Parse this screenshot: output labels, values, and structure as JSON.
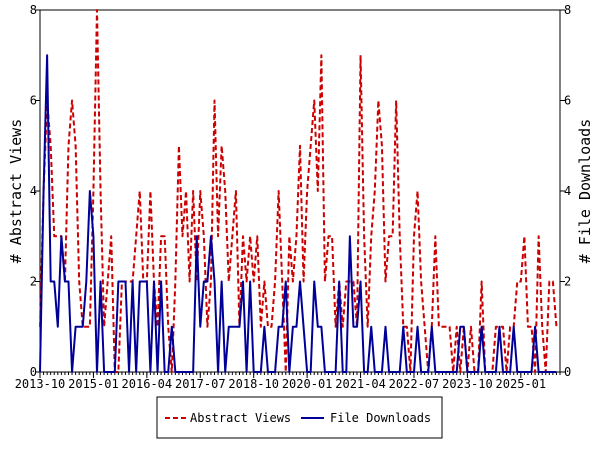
{
  "chart_data": {
    "type": "line",
    "ylabel_left": "# Abstract Views",
    "ylabel_right": "# File Downloads",
    "xlim": [
      "2013-10",
      "2025-12"
    ],
    "ylim_left": [
      0,
      8
    ],
    "ylim_right": [
      0,
      8
    ],
    "y_ticks": [
      0,
      2,
      4,
      6,
      8
    ],
    "x_tick_labels": [
      "2013-10",
      "2015-01",
      "2016-04",
      "2017-07",
      "2018-10",
      "2020-01",
      "2021-04",
      "2022-07",
      "2023-10",
      "2025-01"
    ],
    "grid": false,
    "legend_position": "bottom",
    "series": [
      {
        "name": "Abstract Views",
        "color": "#cc0000",
        "style": "dashed",
        "axis": "left",
        "points": [
          [
            "2013-10",
            1
          ],
          [
            "2013-11",
            4
          ],
          [
            "2013-12",
            6
          ],
          [
            "2014-01",
            5
          ],
          [
            "2014-02",
            3
          ],
          [
            "2014-03",
            3
          ],
          [
            "2014-04",
            3
          ],
          [
            "2014-05",
            2
          ],
          [
            "2014-06",
            5
          ],
          [
            "2014-07",
            6
          ],
          [
            "2014-08",
            5
          ],
          [
            "2014-09",
            2
          ],
          [
            "2014-10",
            1
          ],
          [
            "2014-11",
            1
          ],
          [
            "2014-12",
            1
          ],
          [
            "2015-01",
            4
          ],
          [
            "2015-02",
            8
          ],
          [
            "2015-03",
            4
          ],
          [
            "2015-04",
            1
          ],
          [
            "2015-05",
            2
          ],
          [
            "2015-06",
            3
          ],
          [
            "2015-07",
            0
          ],
          [
            "2015-08",
            0
          ],
          [
            "2015-09",
            2
          ],
          [
            "2015-10",
            2
          ],
          [
            "2015-11",
            2
          ],
          [
            "2015-12",
            2
          ],
          [
            "2016-01",
            3
          ],
          [
            "2016-02",
            4
          ],
          [
            "2016-03",
            2
          ],
          [
            "2016-04",
            2
          ],
          [
            "2016-05",
            4
          ],
          [
            "2016-06",
            2
          ],
          [
            "2016-07",
            1
          ],
          [
            "2016-08",
            3
          ],
          [
            "2016-09",
            3
          ],
          [
            "2016-10",
            1
          ],
          [
            "2016-11",
            0
          ],
          [
            "2016-12",
            2
          ],
          [
            "2017-01",
            5
          ],
          [
            "2017-02",
            3
          ],
          [
            "2017-03",
            4
          ],
          [
            "2017-04",
            2
          ],
          [
            "2017-05",
            4
          ],
          [
            "2017-06",
            2
          ],
          [
            "2017-07",
            4
          ],
          [
            "2017-08",
            3
          ],
          [
            "2017-09",
            1
          ],
          [
            "2017-10",
            2
          ],
          [
            "2017-11",
            6
          ],
          [
            "2017-12",
            3
          ],
          [
            "2018-01",
            5
          ],
          [
            "2018-02",
            4
          ],
          [
            "2018-03",
            2
          ],
          [
            "2018-04",
            3
          ],
          [
            "2018-05",
            4
          ],
          [
            "2018-06",
            1
          ],
          [
            "2018-07",
            3
          ],
          [
            "2018-08",
            2
          ],
          [
            "2018-09",
            3
          ],
          [
            "2018-10",
            2
          ],
          [
            "2018-11",
            3
          ],
          [
            "2018-12",
            1
          ],
          [
            "2019-01",
            2
          ],
          [
            "2019-02",
            1
          ],
          [
            "2019-03",
            1
          ],
          [
            "2019-04",
            2
          ],
          [
            "2019-05",
            4
          ],
          [
            "2019-06",
            2
          ],
          [
            "2019-07",
            0
          ],
          [
            "2019-08",
            3
          ],
          [
            "2019-09",
            2
          ],
          [
            "2019-10",
            3
          ],
          [
            "2019-11",
            5
          ],
          [
            "2019-12",
            2
          ],
          [
            "2020-01",
            4
          ],
          [
            "2020-02",
            5
          ],
          [
            "2020-03",
            6
          ],
          [
            "2020-04",
            4
          ],
          [
            "2020-05",
            7
          ],
          [
            "2020-06",
            2
          ],
          [
            "2020-07",
            3
          ],
          [
            "2020-08",
            3
          ],
          [
            "2020-09",
            1
          ],
          [
            "2020-10",
            2
          ],
          [
            "2020-11",
            1
          ],
          [
            "2020-12",
            2
          ],
          [
            "2021-01",
            2
          ],
          [
            "2021-02",
            2
          ],
          [
            "2021-03",
            1
          ],
          [
            "2021-04",
            7
          ],
          [
            "2021-05",
            3
          ],
          [
            "2021-06",
            1
          ],
          [
            "2021-07",
            3
          ],
          [
            "2021-08",
            4
          ],
          [
            "2021-09",
            6
          ],
          [
            "2021-10",
            5
          ],
          [
            "2021-11",
            2
          ],
          [
            "2021-12",
            3
          ],
          [
            "2022-01",
            3
          ],
          [
            "2022-02",
            6
          ],
          [
            "2022-03",
            3
          ],
          [
            "2022-04",
            1
          ],
          [
            "2022-05",
            1
          ],
          [
            "2022-06",
            0
          ],
          [
            "2022-07",
            3
          ],
          [
            "2022-08",
            4
          ],
          [
            "2022-09",
            2
          ],
          [
            "2022-10",
            1
          ],
          [
            "2022-11",
            0
          ],
          [
            "2022-12",
            1
          ],
          [
            "2023-01",
            3
          ],
          [
            "2023-02",
            1
          ],
          [
            "2023-03",
            1
          ],
          [
            "2023-04",
            1
          ],
          [
            "2023-05",
            1
          ],
          [
            "2023-06",
            0
          ],
          [
            "2023-07",
            1
          ],
          [
            "2023-08",
            0
          ],
          [
            "2023-09",
            1
          ],
          [
            "2023-10",
            0
          ],
          [
            "2023-11",
            1
          ],
          [
            "2023-12",
            0
          ],
          [
            "2024-01",
            0
          ],
          [
            "2024-02",
            2
          ],
          [
            "2024-03",
            0
          ],
          [
            "2024-04",
            0
          ],
          [
            "2024-05",
            0
          ],
          [
            "2024-06",
            1
          ],
          [
            "2024-07",
            1
          ],
          [
            "2024-08",
            1
          ],
          [
            "2024-09",
            0
          ],
          [
            "2024-10",
            1
          ],
          [
            "2024-11",
            1
          ],
          [
            "2024-12",
            2
          ],
          [
            "2025-01",
            2
          ],
          [
            "2025-02",
            3
          ],
          [
            "2025-03",
            1
          ],
          [
            "2025-04",
            1
          ],
          [
            "2025-05",
            0
          ],
          [
            "2025-06",
            3
          ],
          [
            "2025-07",
            1
          ],
          [
            "2025-08",
            0
          ],
          [
            "2025-09",
            2
          ],
          [
            "2025-10",
            2
          ],
          [
            "2025-11",
            1
          ]
        ]
      },
      {
        "name": "File Downloads",
        "color": "#000099",
        "style": "solid",
        "axis": "right",
        "points": [
          [
            "2013-10",
            0
          ],
          [
            "2013-11",
            4
          ],
          [
            "2013-12",
            7
          ],
          [
            "2014-01",
            2
          ],
          [
            "2014-02",
            2
          ],
          [
            "2014-03",
            1
          ],
          [
            "2014-04",
            3
          ],
          [
            "2014-05",
            2
          ],
          [
            "2014-06",
            2
          ],
          [
            "2014-07",
            0
          ],
          [
            "2014-08",
            1
          ],
          [
            "2014-09",
            1
          ],
          [
            "2014-10",
            1
          ],
          [
            "2014-11",
            2
          ],
          [
            "2014-12",
            4
          ],
          [
            "2015-01",
            3
          ],
          [
            "2015-02",
            0
          ],
          [
            "2015-03",
            2
          ],
          [
            "2015-04",
            0
          ],
          [
            "2015-05",
            0
          ],
          [
            "2015-06",
            0
          ],
          [
            "2015-07",
            0
          ],
          [
            "2015-08",
            2
          ],
          [
            "2015-09",
            2
          ],
          [
            "2015-10",
            2
          ],
          [
            "2015-11",
            0
          ],
          [
            "2015-12",
            2
          ],
          [
            "2016-01",
            0
          ],
          [
            "2016-02",
            2
          ],
          [
            "2016-03",
            2
          ],
          [
            "2016-04",
            2
          ],
          [
            "2016-05",
            0
          ],
          [
            "2016-06",
            2
          ],
          [
            "2016-07",
            0
          ],
          [
            "2016-08",
            2
          ],
          [
            "2016-09",
            0
          ],
          [
            "2016-10",
            0
          ],
          [
            "2016-11",
            1
          ],
          [
            "2016-12",
            0
          ],
          [
            "2017-01",
            0
          ],
          [
            "2017-02",
            0
          ],
          [
            "2017-03",
            0
          ],
          [
            "2017-04",
            0
          ],
          [
            "2017-05",
            0
          ],
          [
            "2017-06",
            3
          ],
          [
            "2017-07",
            1
          ],
          [
            "2017-08",
            2
          ],
          [
            "2017-09",
            2
          ],
          [
            "2017-10",
            3
          ],
          [
            "2017-11",
            2
          ],
          [
            "2017-12",
            0
          ],
          [
            "2018-01",
            2
          ],
          [
            "2018-02",
            0
          ],
          [
            "2018-03",
            1
          ],
          [
            "2018-04",
            1
          ],
          [
            "2018-05",
            1
          ],
          [
            "2018-06",
            1
          ],
          [
            "2018-07",
            2
          ],
          [
            "2018-08",
            0
          ],
          [
            "2018-09",
            2
          ],
          [
            "2018-10",
            0
          ],
          [
            "2018-11",
            0
          ],
          [
            "2018-12",
            0
          ],
          [
            "2019-01",
            1
          ],
          [
            "2019-02",
            0
          ],
          [
            "2019-03",
            0
          ],
          [
            "2019-04",
            0
          ],
          [
            "2019-05",
            1
          ],
          [
            "2019-06",
            1
          ],
          [
            "2019-07",
            2
          ],
          [
            "2019-08",
            0
          ],
          [
            "2019-09",
            1
          ],
          [
            "2019-10",
            1
          ],
          [
            "2019-11",
            2
          ],
          [
            "2019-12",
            1
          ],
          [
            "2020-01",
            0
          ],
          [
            "2020-02",
            0
          ],
          [
            "2020-03",
            2
          ],
          [
            "2020-04",
            1
          ],
          [
            "2020-05",
            1
          ],
          [
            "2020-06",
            0
          ],
          [
            "2020-07",
            0
          ],
          [
            "2020-08",
            0
          ],
          [
            "2020-09",
            0
          ],
          [
            "2020-10",
            2
          ],
          [
            "2020-11",
            0
          ],
          [
            "2020-12",
            0
          ],
          [
            "2021-01",
            3
          ],
          [
            "2021-02",
            1
          ],
          [
            "2021-03",
            1
          ],
          [
            "2021-04",
            2
          ],
          [
            "2021-05",
            0
          ],
          [
            "2021-06",
            0
          ],
          [
            "2021-07",
            1
          ],
          [
            "2021-08",
            0
          ],
          [
            "2021-09",
            0
          ],
          [
            "2021-10",
            0
          ],
          [
            "2021-11",
            1
          ],
          [
            "2021-12",
            0
          ],
          [
            "2022-01",
            0
          ],
          [
            "2022-02",
            0
          ],
          [
            "2022-03",
            0
          ],
          [
            "2022-04",
            1
          ],
          [
            "2022-05",
            0
          ],
          [
            "2022-06",
            0
          ],
          [
            "2022-07",
            0
          ],
          [
            "2022-08",
            1
          ],
          [
            "2022-09",
            0
          ],
          [
            "2022-10",
            0
          ],
          [
            "2022-11",
            0
          ],
          [
            "2022-12",
            1
          ],
          [
            "2023-01",
            0
          ],
          [
            "2023-02",
            0
          ],
          [
            "2023-03",
            0
          ],
          [
            "2023-04",
            0
          ],
          [
            "2023-05",
            0
          ],
          [
            "2023-06",
            0
          ],
          [
            "2023-07",
            0
          ],
          [
            "2023-08",
            1
          ],
          [
            "2023-09",
            1
          ],
          [
            "2023-10",
            0
          ],
          [
            "2023-11",
            0
          ],
          [
            "2023-12",
            0
          ],
          [
            "2024-01",
            0
          ],
          [
            "2024-02",
            1
          ],
          [
            "2024-03",
            0
          ],
          [
            "2024-04",
            0
          ],
          [
            "2024-05",
            0
          ],
          [
            "2024-06",
            0
          ],
          [
            "2024-07",
            1
          ],
          [
            "2024-08",
            0
          ],
          [
            "2024-09",
            0
          ],
          [
            "2024-10",
            0
          ],
          [
            "2024-11",
            1
          ],
          [
            "2024-12",
            0
          ],
          [
            "2025-01",
            0
          ],
          [
            "2025-02",
            0
          ],
          [
            "2025-03",
            0
          ],
          [
            "2025-04",
            0
          ],
          [
            "2025-05",
            1
          ],
          [
            "2025-06",
            0
          ],
          [
            "2025-07",
            0
          ],
          [
            "2025-08",
            0
          ],
          [
            "2025-09",
            0
          ],
          [
            "2025-10",
            0
          ],
          [
            "2025-11",
            0
          ]
        ]
      }
    ]
  }
}
